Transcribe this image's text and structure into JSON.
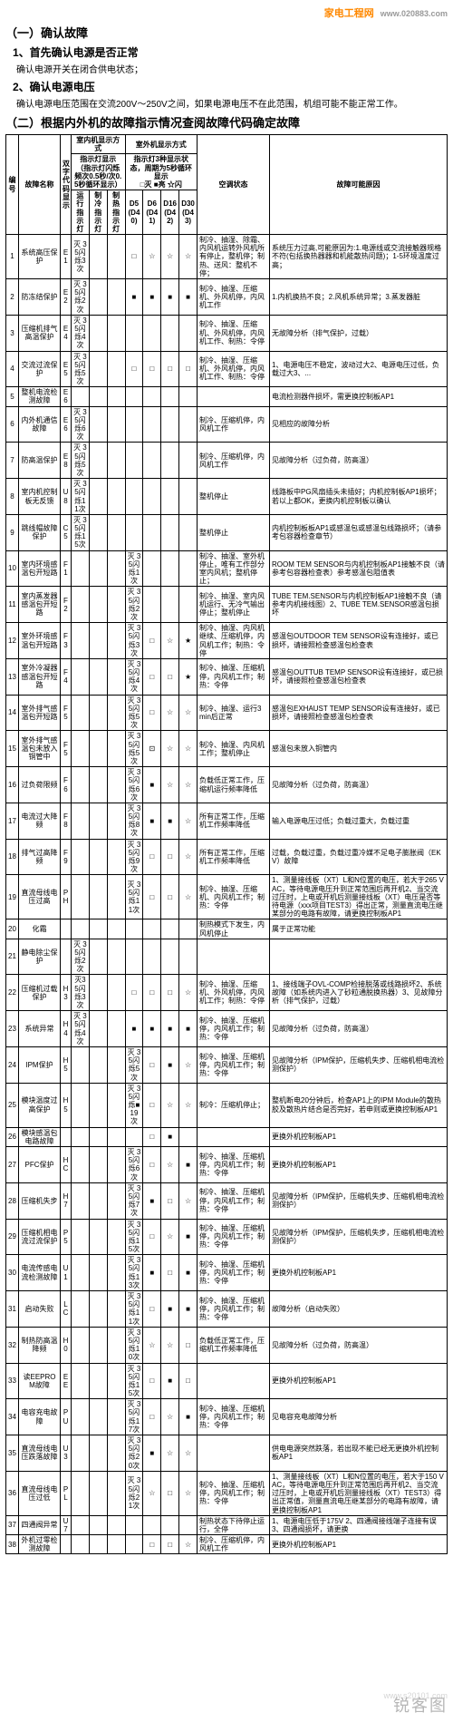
{
  "logo": {
    "text": "家电工程网",
    "url": "www.020883.com"
  },
  "section1": {
    "title": "（一）确认故障",
    "sub1": "1、首先确认电源是否正常",
    "text1": "确认电源开关在闭合供电状态；",
    "sub2": "2、确认电源电压",
    "text2": "确认电源电压范围在交流200V～250V之间，如果电源电压不在此范围，机组可能不能正常工作。"
  },
  "section2": {
    "title": "（二）根据内外机的故障指示情况查阅故障代码确定故障"
  },
  "legend": {
    "off": "□灭",
    "on": "■亮",
    "flash": "☆闪"
  },
  "table": {
    "headers": {
      "col_no": "编号",
      "col_name": "故障名称",
      "col_code": "双字代码显示",
      "col_indoor": "室内机显示方式",
      "col_indoor_sub": "指示灯显示（指示灯闪烁频次0.5秒/次0.5秒循环显示）",
      "col_run": "运行指示灯",
      "col_cool": "制冷指示灯",
      "col_heat": "制热指示灯",
      "col_outdoor": "室外机显示方式",
      "col_outdoor_sub": "指示灯3种显示状态，周期为5秒循环显示",
      "col_d5": "D5 (D40)",
      "col_d6": "D6 (D41)",
      "col_d16": "D16 (D42)",
      "col_d30": "D30 (D43)",
      "col_status": "空调状态",
      "col_cause": "故障可能原因"
    },
    "columns_width": [
      "14",
      "46",
      "12",
      "28",
      "13",
      "13",
      "13",
      "13",
      "13",
      "13",
      "80",
      "196"
    ],
    "rows": [
      {
        "no": "1",
        "name": "系统高压保护",
        "code": "E1",
        "disp": "灭 35闪烁3次",
        "d5": "□",
        "d6": "☆",
        "d16": "☆",
        "d30": "☆",
        "status": "制冷、抽湿、除霜、内风机运转外风机所有停止，整机停；制热、送风：整机不停；",
        "cause": "系统压力过高,可能原因为:1.电源线或交流接触器规格不符(包括换热器器和机能散热问题)；1-5环境温度过高；"
      },
      {
        "no": "2",
        "name": "防冻结保护",
        "code": "E2",
        "disp": "灭 35闪烁2次",
        "d5": "■",
        "d6": "■",
        "d16": "■",
        "d30": "■",
        "status": "制冷、抽湿、压缩机、外风机停，内风机工作",
        "cause": "1.内机换热不良；2.风机系统异常；3.蒸发器脏"
      },
      {
        "no": "3",
        "name": "压缩机排气高温保护",
        "code": "E4",
        "disp": "灭 35闪烁4次",
        "d5": "",
        "d6": "",
        "d16": "",
        "d30": "",
        "status": "制冷、抽湿、压缩机、外风机停，内风机工作、制热：令停",
        "cause": "无故障分析（排气保护，过载）"
      },
      {
        "no": "4",
        "name": "交流过流保护",
        "code": "E5",
        "disp": "灭 35闪烁5次",
        "d5": "□",
        "d6": "□",
        "d16": "□",
        "d30": "□",
        "status": "制冷、抽湿、压缩机、外风机停，内风机工作、制热：令停",
        "cause": "1、电源电压不稳定，波动过大2、电源电压过低，负载过大3、..."
      },
      {
        "no": "5",
        "name": "整机电流检测故障",
        "code": "E6",
        "disp": "",
        "d5": "",
        "d6": "",
        "d16": "",
        "d30": "",
        "status": "",
        "cause": "电流检测器件损坏，需更换控制板AP1"
      },
      {
        "no": "6",
        "name": "内外机通信故障",
        "code": "E6",
        "disp": "灭 35闪烁6次",
        "d5": "",
        "d6": "",
        "d16": "",
        "d30": "",
        "status": "制冷、压缩机停，内风机工作",
        "cause": "见相应的故障分析"
      },
      {
        "no": "7",
        "name": "防高温保护",
        "code": "E8",
        "disp": "灭 35闪烁5次",
        "d5": "",
        "d6": "",
        "d16": "",
        "d30": "",
        "status": "制冷、压缩机停，内风机工作",
        "cause": "见故障分析（过负荷，防高温）"
      },
      {
        "no": "8",
        "name": "室内机控制板无反馈",
        "code": "U8",
        "disp": "灭 35闪烁11次",
        "d5": "",
        "d6": "",
        "d16": "",
        "d30": "",
        "status": "整机停止",
        "cause": "线路板中PG风扇插头未插好；内机控制板AP1损坏；若以上都OK，更换内机控制板以确认"
      },
      {
        "no": "9",
        "name": "跳线帽故障保护",
        "code": "C5",
        "disp": "灭 35闪烁15次",
        "d5": "",
        "d6": "",
        "d16": "",
        "d30": "",
        "status": "整机停止",
        "cause": "内机控制板板AP1或感温包或感温包线路损坏；（请参考包容器检查章节）"
      },
      {
        "no": "10",
        "name": "室内环境感温包开短路",
        "code": "F1",
        "disp": "",
        "d5": "灭 35闪烁1次",
        "d6": "",
        "d16": "",
        "d30": "",
        "status": "制冷、抽湿、室外机停止，唯有工作部分室内风机；整机停止；",
        "cause": "ROOM TEM SENSOR与内机控制板AP1接触不良（请参考包容器检查表）参考感温包阻值表"
      },
      {
        "no": "11",
        "name": "室内蒸发器感温包开短路",
        "code": "F2",
        "disp": "",
        "d5": "灭 35闪烁2次",
        "d6": "",
        "d16": "",
        "d30": "",
        "status": "制冷、抽湿、室内风机运行、无冷气输出停止；整机停止",
        "cause": "TUBE TEM.SENSOR与内机控制板AP1接触不良（请参考内机接线图）2、TUBE TEM.SENSOR感温包损坏"
      },
      {
        "no": "12",
        "name": "室外环境感温包开短路",
        "code": "F3",
        "disp": "",
        "d5": "灭 35闪烁3次",
        "d6": "□",
        "d16": "☆",
        "d30": "★",
        "status": "制冷、抽湿、内风机继续、压缩机停，内风机工作；制热：令停",
        "cause": "感温包OUTDOOR TEM SENSOR设有连接好，或已损坏，请接照检查感温包检查表"
      },
      {
        "no": "13",
        "name": "室外冷凝器感温包开短路",
        "code": "F4",
        "disp": "",
        "d5": "灭 35闪烁4次",
        "d6": "□",
        "d16": "□",
        "d30": "★",
        "status": "制冷、抽湿、压缩机停，内风机工作；制热：令停",
        "cause": "感温包OUTTUB TEMP SENSOR设有连接好，或已损坏，请接照检查感温包检查表"
      },
      {
        "no": "14",
        "name": "室外排气感温包开短路",
        "code": "F5",
        "disp": "",
        "d5": "灭 35闪烁5次",
        "d6": "□",
        "d16": "☆",
        "d30": "☆",
        "status": "制冷、抽湿、运行3min后正常",
        "cause": "感温包EXHAUST TEMP SENSOR设有连接好，或已损坏，请接照检查感温包检查表"
      },
      {
        "no": "15",
        "name": "室外排气感温包未放入铜管中",
        "code": "F5",
        "disp": "",
        "d5": "灭 35闪烁5次",
        "d6": "⊡",
        "d16": "☆",
        "d30": "☆",
        "status": "制冷、抽湿、内风机工作；整机停止",
        "cause": "感温包未放入铜管内"
      },
      {
        "no": "16",
        "name": "过负荷限频",
        "code": "F6",
        "disp": "",
        "d5": "灭 35闪烁6次",
        "d6": "■",
        "d16": "☆",
        "d30": "☆",
        "status": "负载低正常工作，压缩机运行频率降低",
        "cause": "见故障分析（过负荷，防高温）"
      },
      {
        "no": "17",
        "name": "电流过大降频",
        "code": "F8",
        "disp": "",
        "d5": "灭 35闪烁8次",
        "d6": "■",
        "d16": "■",
        "d30": "☆",
        "status": "所有正常工作，压缩机工作频率降低",
        "cause": "输入电源电压过低；负载过重大，负载过重"
      },
      {
        "no": "18",
        "name": "排气过高降频",
        "code": "F9",
        "disp": "",
        "d5": "灭 35闪烁9次",
        "d6": "□",
        "d16": "□",
        "d30": "☆",
        "status": "所有正常工作，压缩机工作频率降低",
        "cause": "过载，负载过重，负载过重冷媒不足电子膨胀阀（EKV）故障"
      },
      {
        "no": "19",
        "name": "直流母线电压过高",
        "code": "PH",
        "disp": "",
        "d5": "灭 35闪烁11次",
        "d6": "□",
        "d16": "□",
        "d30": "☆",
        "status": "制冷、抽湿、压缩机、内风机工作；制热：令停",
        "cause": "1、测量接线板（XT）L和N位置的电压，若大于265 VAC，等待电源电压升到正常范围后再开机2、当交流过压时，上电或开机后测量接线板（XT）电压是否等待电源（xxx项目TEST3）得出正常，测量直流电压继某部分的电路有故障，请更换控制板AP1"
      },
      {
        "no": "20",
        "name": "化霜",
        "code": "",
        "disp": "",
        "d5": "",
        "d6": "",
        "d16": "",
        "d30": "",
        "status": "制热模式下发生，内风机停止",
        "cause": "属于正常功能"
      },
      {
        "no": "21",
        "name": "静电除尘保护",
        "code": "",
        "disp": "灭 35闪烁2次",
        "d5": "",
        "d6": "",
        "d16": "",
        "d30": "",
        "status": "",
        "cause": ""
      },
      {
        "no": "22",
        "name": "压缩机过载保护",
        "code": "H3",
        "disp": "灭35闪烁3次",
        "d5": "□",
        "d6": "□",
        "d16": "□",
        "d30": "☆",
        "status": "制冷、抽湿、压缩机、外风机停，内风机工作；制热：令停",
        "cause": "1、接线端子OVL-COMP检接脱落或线路损坏2、系统故障（如系统内进入了砂粒通脱换热器）3、见故障分析（排气保护，过载）"
      },
      {
        "no": "23",
        "name": "系统异常",
        "code": "H4",
        "disp": "灭 35闪烁4次",
        "d5": "■",
        "d6": "■",
        "d16": "■",
        "d30": "■",
        "status": "制冷、抽湿、压缩机停，内风机工作；制热：令停",
        "cause": "见故障分析（过负荷，防高温）"
      },
      {
        "no": "24",
        "name": "IPM保护",
        "code": "H5",
        "disp": "",
        "d5": "灭 35闪烁5次",
        "d6": "□",
        "d16": "■",
        "d30": "☆",
        "status": "制冷、抽湿、压缩机停，内风机工作；制热：令停",
        "cause": "见故障分析（IPM保护，压缩机失步、压缩机相电流检测保护）"
      },
      {
        "no": "25",
        "name": "模块温度过高保护",
        "code": "H5",
        "disp": "",
        "d5": "灭 35闪烁■19次",
        "d6": "□",
        "d16": "☆",
        "d30": "☆",
        "status": "制冷：压缩机停止；",
        "cause": "整机断电20分钟后，检查AP1上的IPM Module的散热胶及散热片结合是否完好，若申则或更换控制板AP1"
      },
      {
        "no": "26",
        "name": "模块感温包电路故障",
        "code": "",
        "disp": "",
        "d5": "",
        "d6": "□",
        "d16": "■",
        "d30": "",
        "status": "",
        "cause": "更换外机控制板AP1"
      },
      {
        "no": "27",
        "name": "PFC保护",
        "code": "HC",
        "disp": "",
        "d5": "灭 35闪烁6次",
        "d6": "□",
        "d16": "☆",
        "d30": "■",
        "status": "制冷、抽湿、压缩机停，内风机工作；制热：令停",
        "cause": "更换外机控制板AP1"
      },
      {
        "no": "28",
        "name": "压缩机失步",
        "code": "H7",
        "disp": "",
        "d5": "灭 35闪烁7次",
        "d6": "■",
        "d16": "□",
        "d30": "☆",
        "status": "制冷、抽湿、压缩机停，内风机工作；制热：令停",
        "cause": "见故障分析（IPM保护，压缩机失步、压缩机相电流检测保护）"
      },
      {
        "no": "29",
        "name": "压缩机相电流过流保护",
        "code": "P5",
        "disp": "",
        "d5": "灭 35闪烁15次",
        "d6": "□",
        "d16": "☆",
        "d30": "■",
        "status": "制冷、抽湿、压缩机停，内风机工作；制热：令停",
        "cause": "见故障分析（IPM保护，压缩机失步，压缩机相电流检测保护）"
      },
      {
        "no": "30",
        "name": "电流传感电流检测故障",
        "code": "U1",
        "disp": "",
        "d5": "灭 35闪烁13次",
        "d6": "■",
        "d16": "□",
        "d30": "■",
        "status": "制冷、抽湿、压缩机停，内风机工作；制热：令停",
        "cause": "更换外机控制板AP1"
      },
      {
        "no": "31",
        "name": "启动失败",
        "code": "LC",
        "disp": "",
        "d5": "灭 35闪烁11次",
        "d6": "□",
        "d16": "■",
        "d30": "■",
        "status": "制冷、抽湿、压缩机停，内风机工作；制热：令停",
        "cause": "故障分析（启动失败）"
      },
      {
        "no": "32",
        "name": "制热防高温降频",
        "code": "H0",
        "disp": "",
        "d5": "灭 35闪烁10次",
        "d6": "☆",
        "d16": "☆",
        "d30": "□",
        "status": "负载低正常工作，压缩机工作频率降低",
        "cause": "见故障分析（过负荷，防高温）"
      },
      {
        "no": "33",
        "name": "读EEPROM故障",
        "code": "EE",
        "disp": "",
        "d5": "灭 35闪烁15次",
        "d6": "□",
        "d16": "■",
        "d30": "□",
        "status": "",
        "cause": "更换外机控制板AP1"
      },
      {
        "no": "34",
        "name": "电容充电故障",
        "code": "PU",
        "disp": "",
        "d5": "灭 35闪烁17次",
        "d6": "□",
        "d16": "☆",
        "d30": "■",
        "status": "制冷、抽湿、压缩机停，内风机工作；制热：令停",
        "cause": "见电容充电故障分析"
      },
      {
        "no": "35",
        "name": "直流母线电压跌落故障",
        "code": "U3",
        "disp": "",
        "d5": "灭 35闪烁20次",
        "d6": "■",
        "d16": "☆",
        "d30": "☆",
        "status": "",
        "cause": "供电电源突然跌落，若出现不能已经无更换外机控制板AP1"
      },
      {
        "no": "36",
        "name": "直流母线电压过低",
        "code": "PL",
        "disp": "",
        "d5": "灭 35闪烁21次",
        "d6": "☆",
        "d16": "□",
        "d30": "☆",
        "status": "制冷、抽湿、压缩机停，内风机工作；制热：令停",
        "cause": "1、测量接线板（XT）L和N位置的电压，若大于150 VAC，等待电源电压升到正常范围后再开机2、当交流过压时，上电或开机后测量接线板（XT）TEST3）得出正常值，测量直流电压继某部分的电路有故障，请更换控制板AP1"
      },
      {
        "no": "37",
        "name": "四通阀异常",
        "code": "U7",
        "disp": "",
        "d5": "",
        "d6": "",
        "d16": "",
        "d30": "",
        "status": "制热状态下待停止运行，全停",
        "cause": "1、电源电压低于175V 2、四通阀接线端子连接有误3、四通阀损坏，请更换"
      },
      {
        "no": "38",
        "name": "外机过零检测故障",
        "code": "",
        "disp": "",
        "d5": "",
        "d6": "□",
        "d16": "□",
        "d30": "☆",
        "status": "制冷、压缩机停，内风机工作",
        "cause": "更换外机控制板AP1"
      }
    ]
  },
  "watermark": {
    "text": "锐客图",
    "url": "www.s20101.com"
  }
}
